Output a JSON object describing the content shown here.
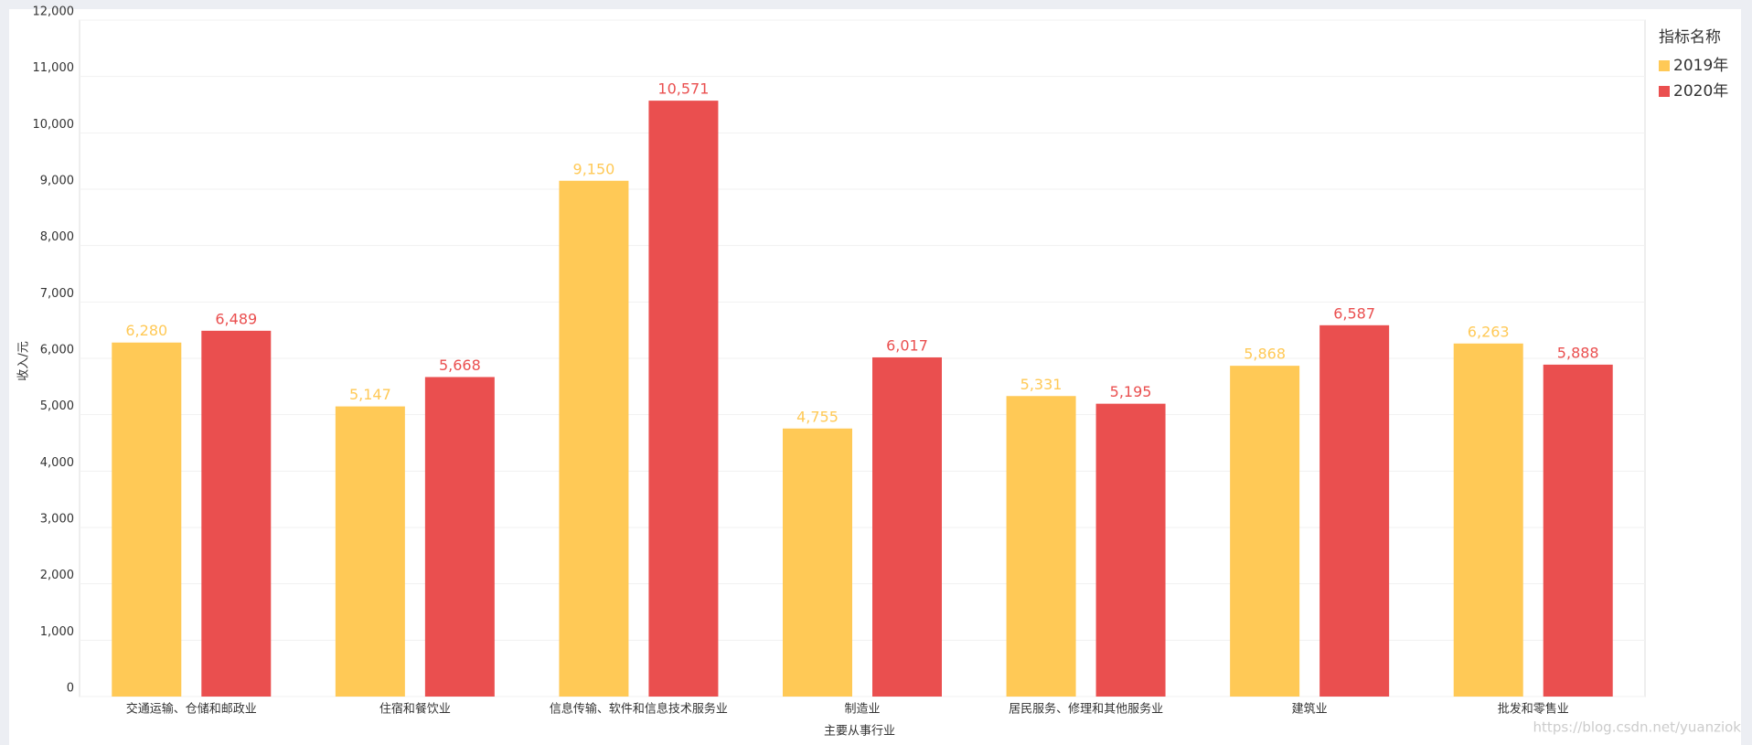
{
  "chart_data": {
    "type": "bar",
    "x_label": "主要从事行业",
    "y_label": "收入/元",
    "legend_title": "指标名称",
    "watermark": "https://blog.csdn.net/yuanziok",
    "categories": [
      "交通运输、仓储和邮政业",
      "住宿和餐饮业",
      "信息传输、软件和信息技术服务业",
      "制造业",
      "居民服务、修理和其他服务业",
      "建筑业",
      "批发和零售业"
    ],
    "series": [
      {
        "name": "2019年",
        "color": "#ffc956",
        "values": [
          6280,
          5147,
          9150,
          4755,
          5331,
          5868,
          6263
        ],
        "value_labels": [
          "6,280",
          "5,147",
          "9,150",
          "4,755",
          "5,331",
          "5,868",
          "6,263"
        ]
      },
      {
        "name": "2020年",
        "color": "#ea4f4f",
        "values": [
          6489,
          5668,
          10571,
          6017,
          5195,
          6587,
          5888
        ],
        "value_labels": [
          "6,489",
          "5,668",
          "10,571",
          "6,017",
          "5,195",
          "6,587",
          "5,888"
        ]
      }
    ],
    "ylim": [
      0,
      12000
    ],
    "yticks": [
      0,
      {
        "value": 1000,
        "label": "1,000"
      },
      {
        "value": 2000,
        "label": "2,000"
      },
      {
        "value": 3000,
        "label": "3,000"
      },
      {
        "value": 4000,
        "label": "4,000"
      },
      {
        "value": 5000,
        "label": "5,000"
      },
      {
        "value": 6000,
        "label": "6,000"
      },
      {
        "value": 7000,
        "label": "7,000"
      },
      {
        "value": 8000,
        "label": "8,000"
      },
      {
        "value": 9000,
        "label": "9,000"
      },
      {
        "value": 10000,
        "label": "10,000"
      },
      {
        "value": 11000,
        "label": "11,000"
      },
      {
        "value": 12000,
        "label": "12,000"
      }
    ],
    "grid": true,
    "legend": "top-right"
  }
}
